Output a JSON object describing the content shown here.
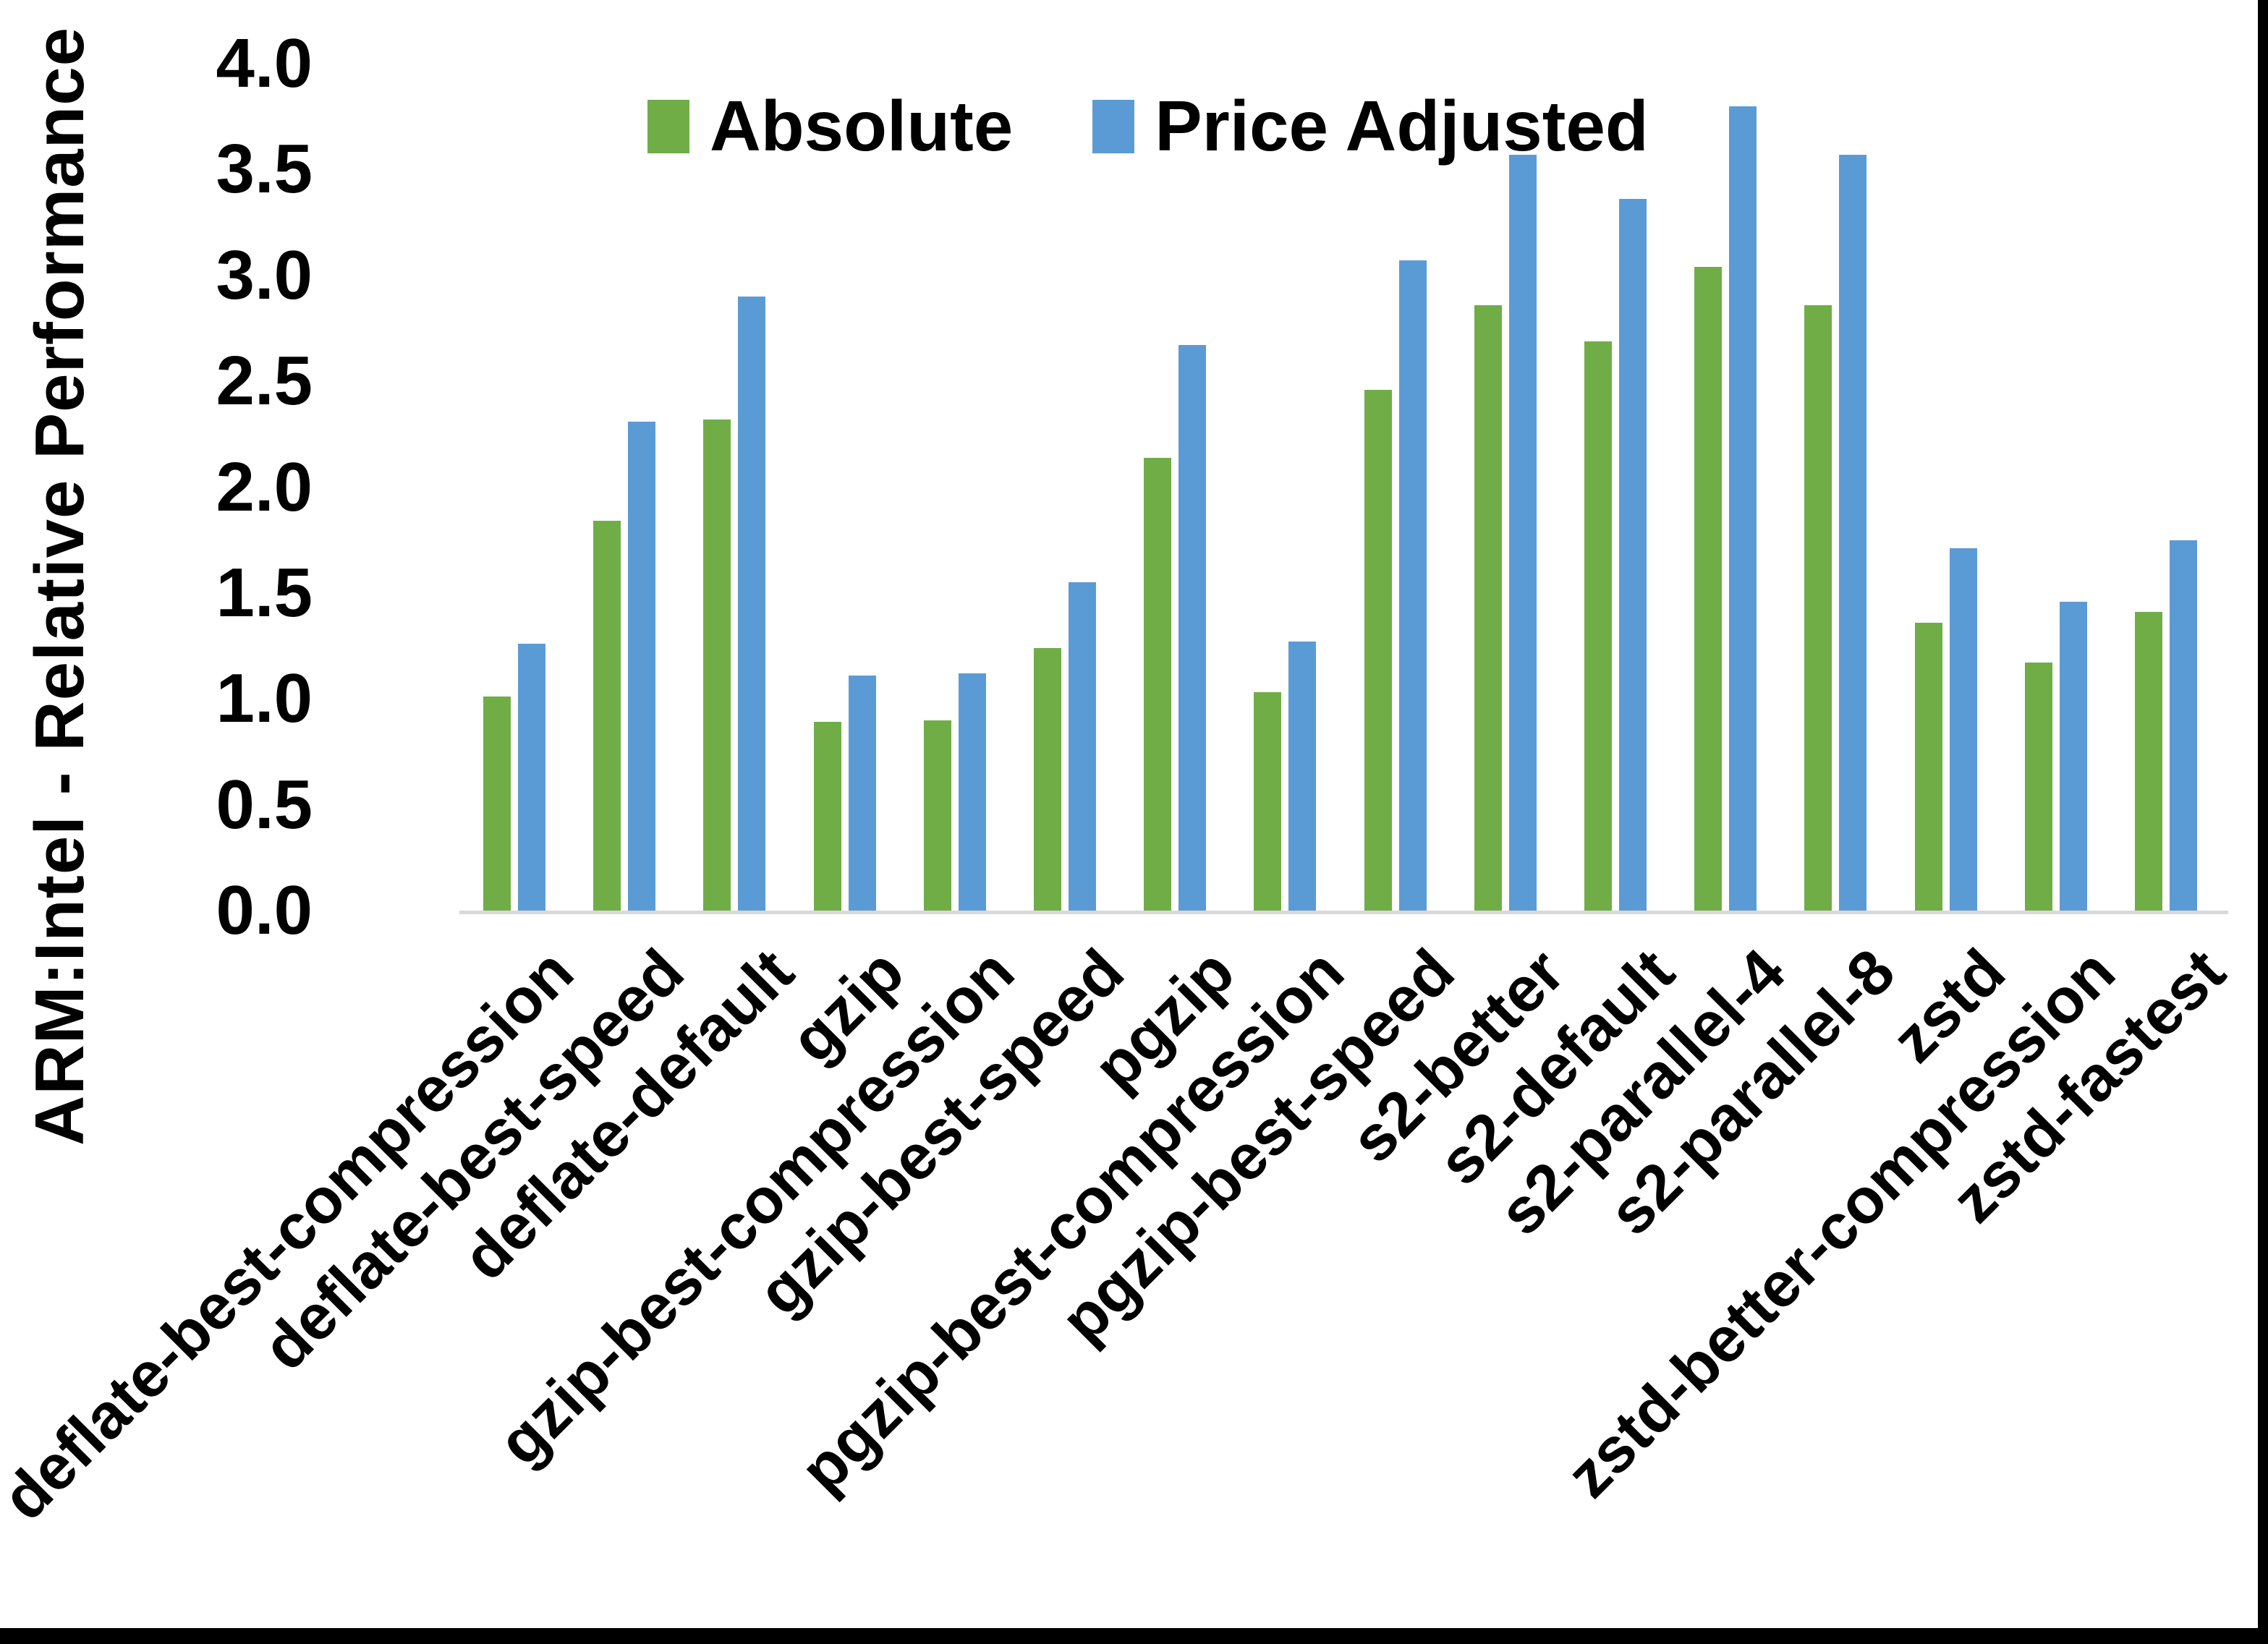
{
  "chart_data": {
    "type": "bar",
    "title": "",
    "xlabel": "",
    "ylabel": "ARM:Intel - Relative Performance",
    "ylim": [
      0.0,
      4.0
    ],
    "ytick_step": 0.5,
    "ytick_labels": [
      "4.0",
      "3.5",
      "3.0",
      "2.5",
      "2.0",
      "1.5",
      "1.0",
      "0.5",
      "0.0"
    ],
    "grid": false,
    "legend_position": "top-center",
    "categories": [
      "deflate-best-compression",
      "deflate-best-speed",
      "deflate-default",
      "gzip",
      "gzip-best-compression",
      "gzip-best-speed",
      "pgzip",
      "pgzip-best-compression",
      "pgzip-best-speed",
      "s2-better",
      "s2-default",
      "s2-parallel-4",
      "s2-parallel-8",
      "zstd",
      "zstd-better-compression",
      "zstd-fastest"
    ],
    "series": [
      {
        "name": "Absolute",
        "color": "#70AD47",
        "values": [
          1.01,
          1.84,
          2.32,
          0.89,
          0.9,
          1.24,
          2.14,
          1.03,
          2.46,
          2.86,
          2.69,
          3.04,
          2.86,
          1.36,
          1.17,
          1.41
        ]
      },
      {
        "name": "Price Adjusted",
        "color": "#5B9BD5",
        "values": [
          1.26,
          2.31,
          2.9,
          1.11,
          1.12,
          1.55,
          2.67,
          1.27,
          3.07,
          3.57,
          3.36,
          3.8,
          3.57,
          1.71,
          1.46,
          1.75
        ]
      }
    ],
    "colors": {
      "axis_line": "#d9d9d9",
      "text": "#000000",
      "background": "#ffffff",
      "screen_border": "#000000"
    }
  }
}
